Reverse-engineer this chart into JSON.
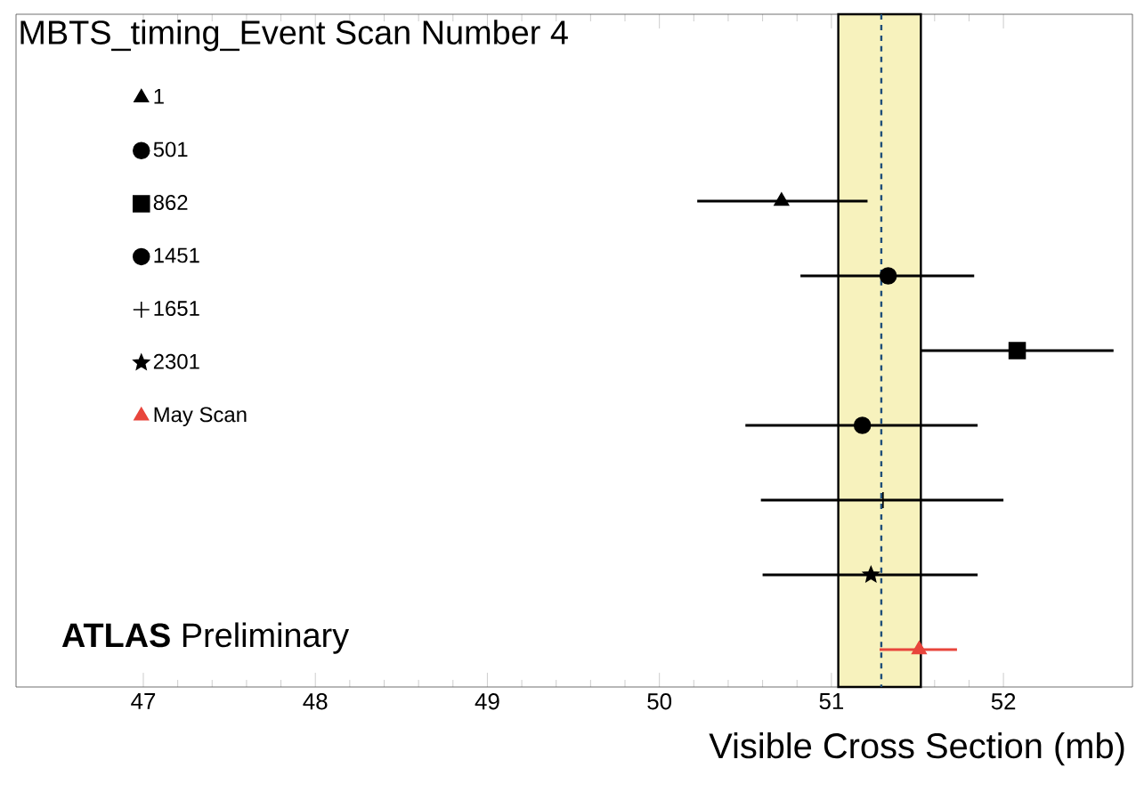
{
  "chart_data": {
    "type": "scatter",
    "orientation": "horizontal",
    "title": "MBTS_timing_Event  Scan Number 4",
    "xlabel": "Visible Cross Section (mb)",
    "annotations": [
      "**ATLAS** Preliminary"
    ],
    "categories": [
      null,
      null,
      null,
      null,
      null,
      null,
      null,
      null,
      null
    ],
    "xlim": [
      46.26,
      52.75
    ],
    "xticks": [
      47,
      48,
      49,
      50,
      51,
      52
    ],
    "legend": "top left",
    "series": [
      {
        "name": "1",
        "color": "#000000",
        "marker": "triangle",
        "values": [
          null,
          null,
          50.71,
          null,
          null,
          null,
          null,
          null,
          null
        ],
        "errors": [
          null,
          null,
          [
            50.22,
            51.21
          ],
          null,
          null,
          null,
          null,
          null,
          null
        ]
      },
      {
        "name": "501",
        "color": "#000000",
        "marker": "circle",
        "values": [
          null,
          null,
          null,
          51.33,
          null,
          null,
          null,
          null,
          null
        ],
        "errors": [
          null,
          null,
          null,
          [
            50.82,
            51.83
          ],
          null,
          null,
          null,
          null,
          null
        ]
      },
      {
        "name": "862",
        "color": "#000000",
        "marker": "square",
        "values": [
          null,
          null,
          null,
          null,
          52.08,
          null,
          null,
          null,
          null
        ],
        "errors": [
          null,
          null,
          null,
          null,
          [
            51.52,
            52.64
          ],
          null,
          null,
          null,
          null
        ]
      },
      {
        "name": "1451",
        "color": "#000000",
        "marker": "circle",
        "values": [
          null,
          null,
          null,
          null,
          null,
          51.18,
          null,
          null,
          null
        ],
        "errors": [
          null,
          null,
          null,
          null,
          null,
          [
            50.5,
            51.85
          ],
          null,
          null,
          null
        ]
      },
      {
        "name": "1651",
        "color": "#000000",
        "marker": "cross",
        "values": [
          null,
          null,
          null,
          null,
          null,
          null,
          51.3,
          null,
          null
        ],
        "errors": [
          null,
          null,
          null,
          null,
          null,
          null,
          [
            50.59,
            52.0
          ],
          null,
          null
        ]
      },
      {
        "name": "2301",
        "color": "#000000",
        "marker": "star",
        "values": [
          null,
          null,
          null,
          null,
          null,
          null,
          null,
          51.23,
          null
        ],
        "errors": [
          null,
          null,
          null,
          null,
          null,
          null,
          null,
          [
            50.6,
            51.85
          ],
          null
        ]
      },
      {
        "name": "May Scan",
        "color": "#e8453c",
        "marker": "triangle",
        "values": [
          null,
          null,
          null,
          null,
          null,
          null,
          null,
          null,
          51.51
        ],
        "errors": [
          null,
          null,
          null,
          null,
          null,
          null,
          null,
          null,
          [
            51.28,
            51.73
          ]
        ]
      }
    ],
    "bands": [
      {
        "axis": "x",
        "from": 51.04,
        "to": 51.52,
        "color": "#f7f2bd"
      }
    ],
    "ref_lines": [
      {
        "axis": "x",
        "value": 51.29,
        "color": "#1f4e79",
        "line_style": "dashed"
      }
    ]
  }
}
